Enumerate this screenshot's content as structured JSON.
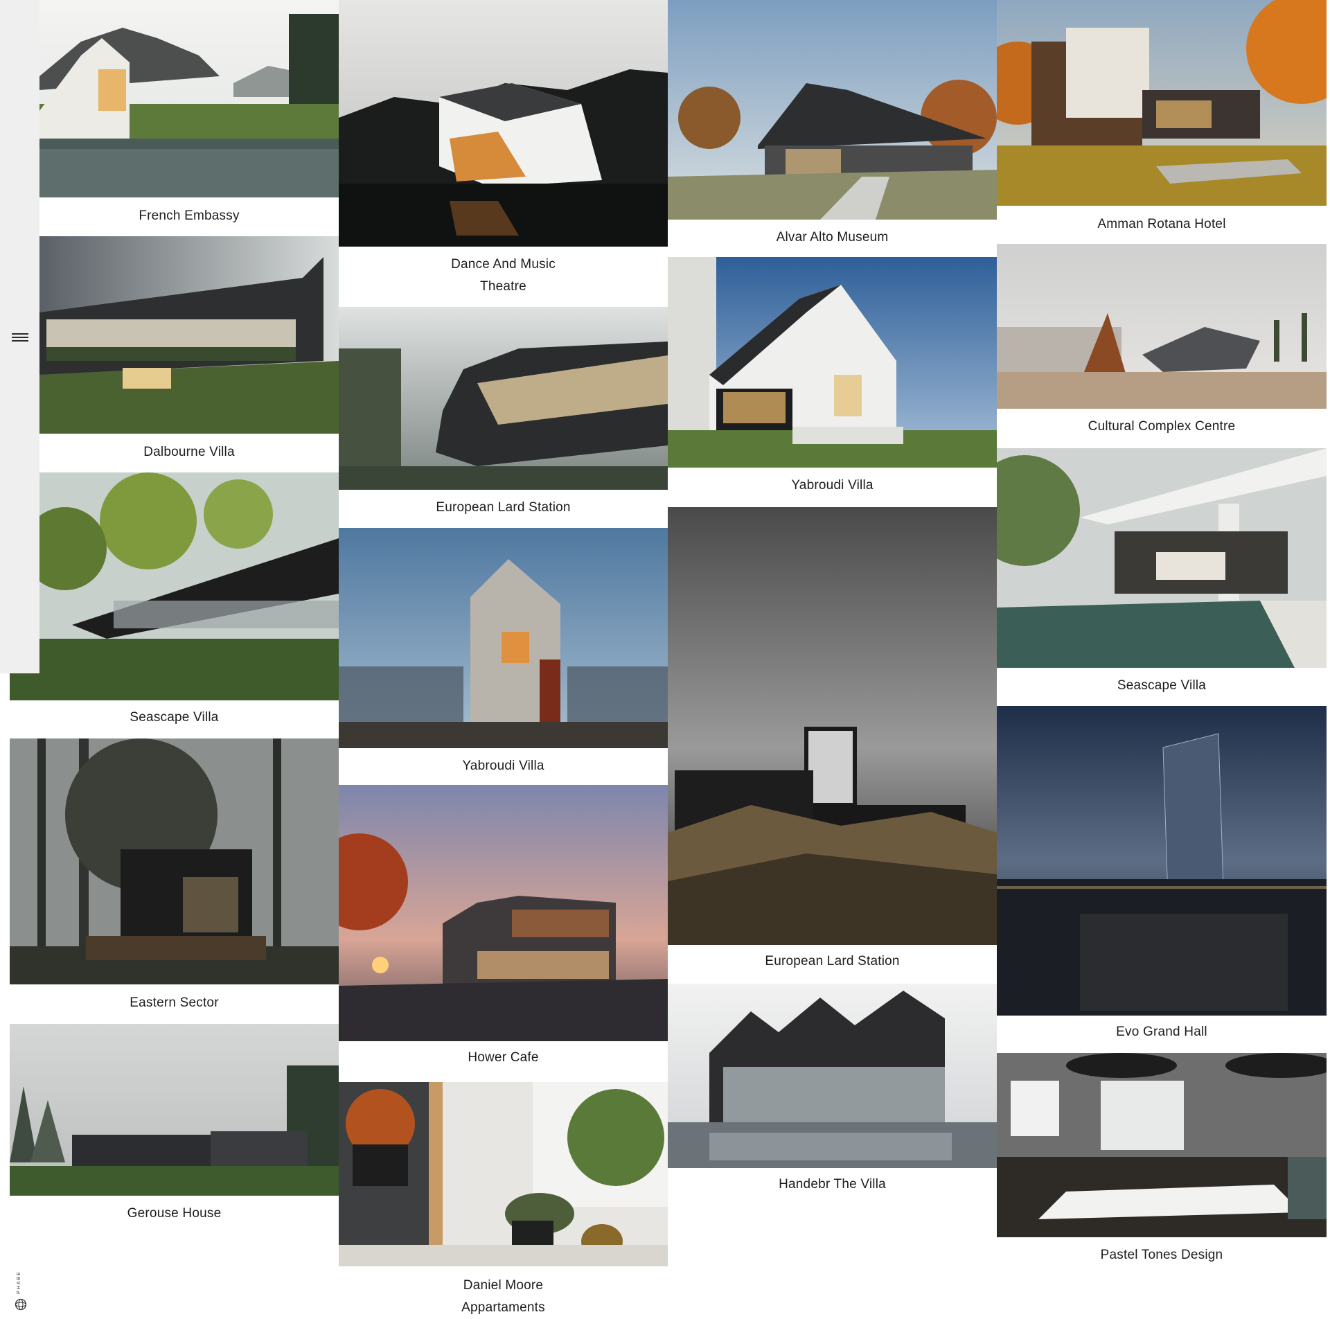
{
  "nav": {
    "menu_icon": "hamburger-menu-icon",
    "brand_text": "PHABE",
    "brand_icon": "sphere-logo-icon"
  },
  "projects": [
    {
      "title": "French Embassy",
      "scene": "lake-cabin"
    },
    {
      "title": "Dance And Music Theatre",
      "scene": "night-angular"
    },
    {
      "title": "Alvar Alto Museum",
      "scene": "gable-house-autumn"
    },
    {
      "title": "Amman Rotana Hotel",
      "scene": "modern-autumn"
    },
    {
      "title": "Dalbourne Villa",
      "scene": "cantilever-villa"
    },
    {
      "title": "Cultural Complex Centre",
      "scene": "triangle-pavilion"
    },
    {
      "title": "European Lard Station",
      "scene": "futuristic-terminal"
    },
    {
      "title": "Yabroudi Villa",
      "scene": "white-house-dusk"
    },
    {
      "title": "Seascape Villa",
      "scene": "forest-glass-bridge"
    },
    {
      "title": "Seascape Villa",
      "scene": "pool-terrace"
    },
    {
      "title": "Yabroudi Villa",
      "scene": "wooden-tower"
    },
    {
      "title": "European Lard Station",
      "scene": "dune-monochrome"
    },
    {
      "title": "Eastern Sector",
      "scene": "dark-forest-cabin"
    },
    {
      "title": "Evo Grand Hall",
      "scene": "night-skyscraper"
    },
    {
      "title": "Hower Cafe",
      "scene": "street-sunset"
    },
    {
      "title": "Gerouse House",
      "scene": "foggy-bungalow"
    },
    {
      "title": "Handebr The Villa",
      "scene": "dark-glass-villa"
    },
    {
      "title": "Pastel Tones Design",
      "scene": "interior-dining"
    },
    {
      "title": "Daniel Moore Appartaments",
      "scene": "interior-plants"
    }
  ]
}
